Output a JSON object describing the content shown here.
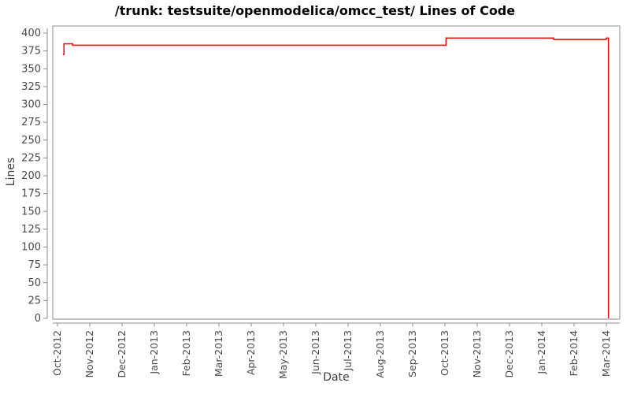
{
  "chart_data": {
    "type": "line",
    "title": "/trunk: testsuite/openmodelica/omcc_test/ Lines of Code",
    "xlabel": "Date",
    "ylabel": "Lines",
    "line_color": "#ee1111",
    "frame_color": "#8c8c8c",
    "tick_text_color": "#4a4a4a",
    "background_color": "#ffffff",
    "grid": false,
    "legend": "none",
    "ylim": [
      0,
      410
    ],
    "y_ticks": [
      0,
      25,
      50,
      75,
      100,
      125,
      150,
      175,
      200,
      225,
      250,
      275,
      300,
      325,
      350,
      375,
      400
    ],
    "x_tick_labels": [
      "Oct-2012",
      "Nov-2012",
      "Dec-2012",
      "Jan-2013",
      "Feb-2013",
      "Mar-2013",
      "Apr-2013",
      "May-2013",
      "Jun-2013",
      "Jul-2013",
      "Aug-2013",
      "Sep-2013",
      "Oct-2013",
      "Nov-2013",
      "Dec-2013",
      "Jan-2014",
      "Feb-2014",
      "Mar-2014"
    ],
    "series": [
      {
        "name": "lines-of-code",
        "step": "after",
        "points": [
          [
            "2012-10-06",
            370
          ],
          [
            "2012-10-07",
            385
          ],
          [
            "2012-10-15",
            383
          ],
          [
            "2013-10-02",
            393
          ],
          [
            "2014-01-12",
            391
          ],
          [
            "2014-03-01",
            393
          ],
          [
            "2014-03-03",
            0
          ]
        ]
      }
    ]
  }
}
